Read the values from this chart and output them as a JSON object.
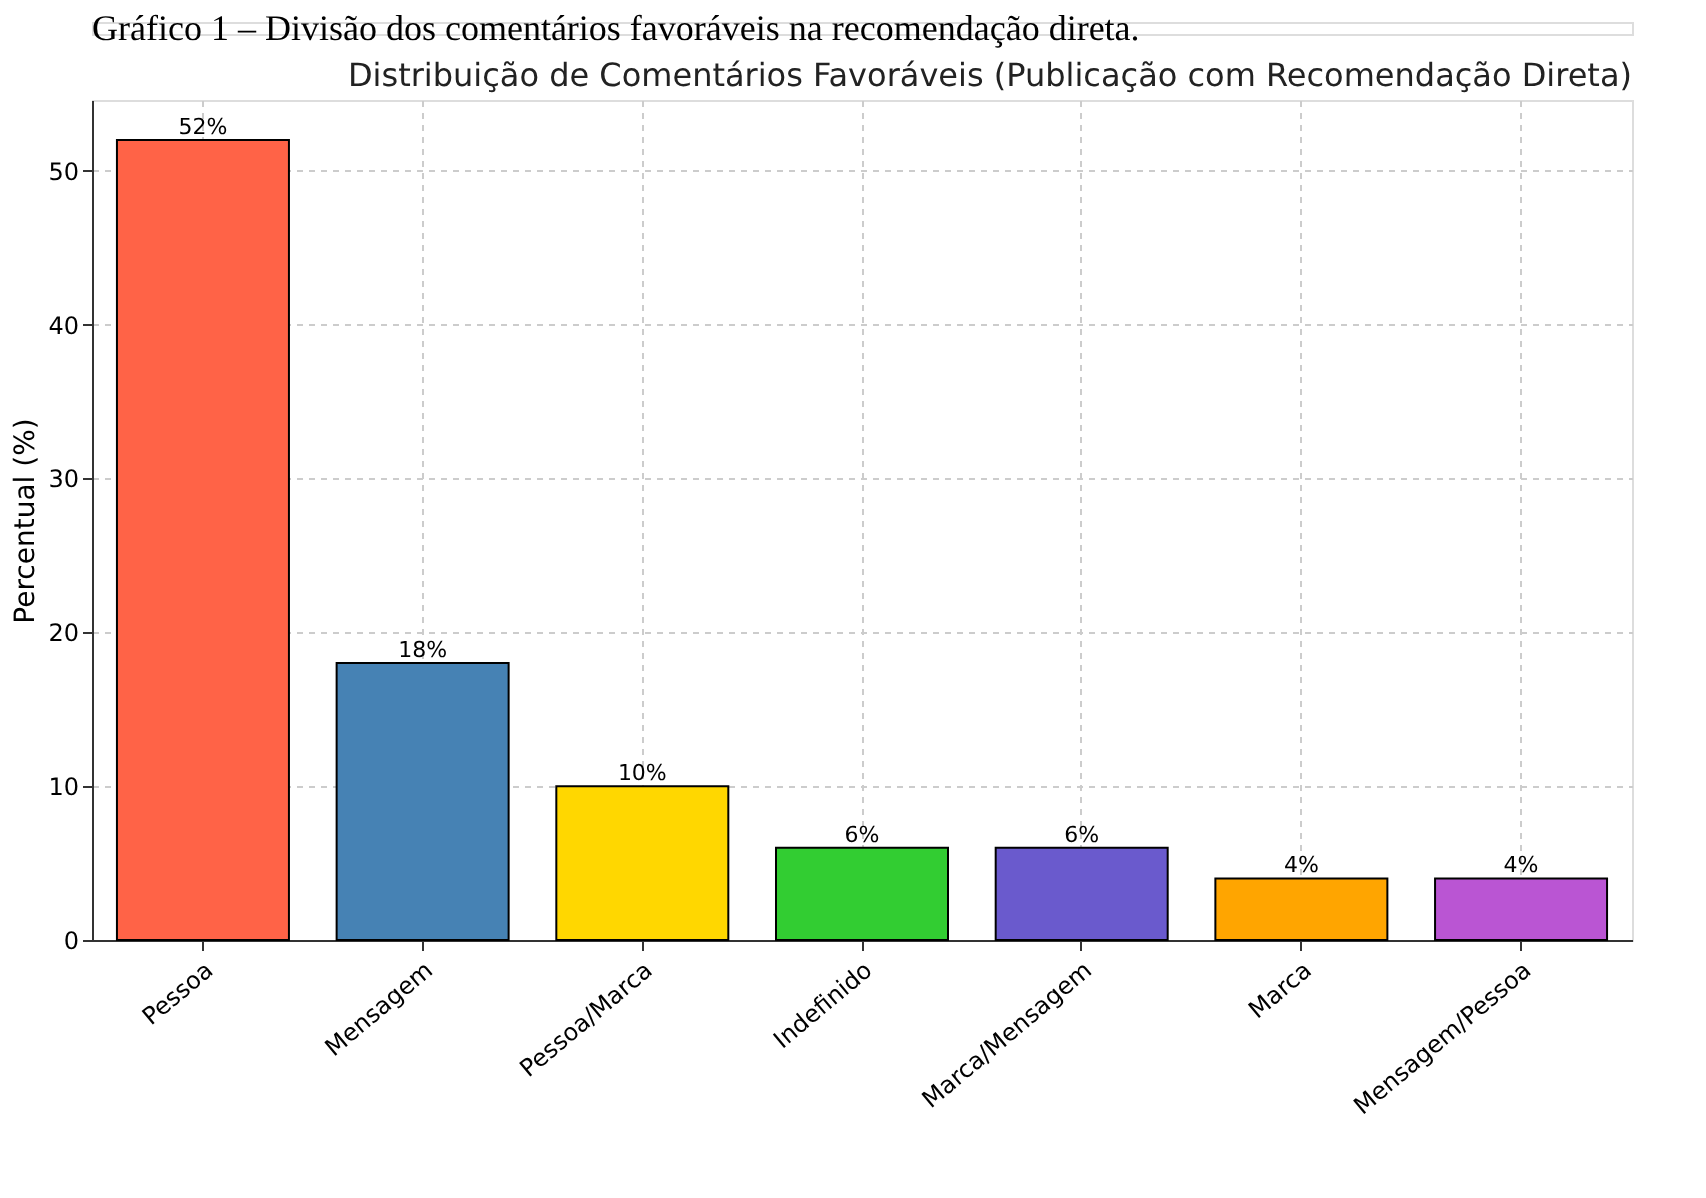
{
  "chart_data": {
    "type": "bar",
    "title": "Distribuição de Comentários Favoráveis (Publicação com Recomendação Direta)",
    "annotations": [
      "Gráfico 1 – Divisão dos comentários favoráveis na recomendação direta."
    ],
    "ylabel": "Percentual (%)",
    "categories": [
      "Pessoa",
      "Mensagem",
      "Pessoa/Marca",
      "Indefinido",
      "Marca/Mensagem",
      "Marca",
      "Mensagem/Pessoa"
    ],
    "values": [
      52,
      18,
      10,
      6,
      6,
      4,
      4
    ],
    "colors": [
      "#ff6347",
      "#4682b4",
      "#ffd700",
      "#32cd32",
      "#6a5acd",
      "#ffa500",
      "#ba55d3"
    ],
    "value_labels": [
      "52%",
      "18%",
      "10%",
      "6%",
      "6%",
      "4%",
      "4%"
    ],
    "ylim": [
      0,
      54.6
    ],
    "yticks": [
      0,
      10,
      20,
      30,
      40,
      50
    ],
    "grid": true
  }
}
